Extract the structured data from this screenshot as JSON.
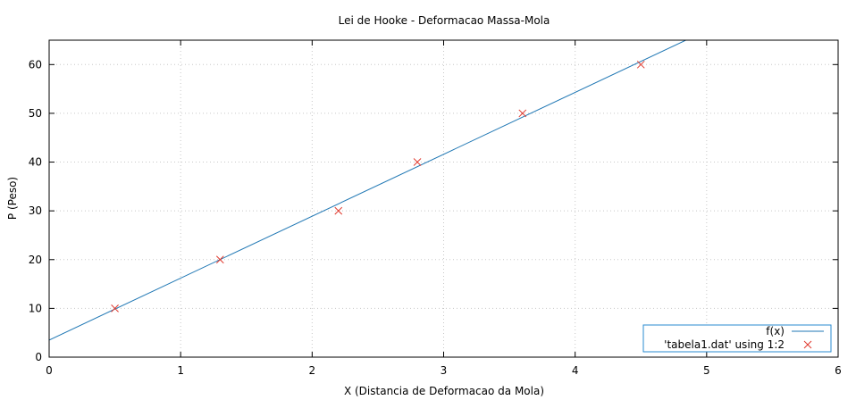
{
  "chart_data": {
    "type": "scatter",
    "title": "Lei de Hooke - Deformacao Massa-Mola",
    "xlabel": "X (Distancia de Deformacao da Mola)",
    "ylabel": "P (Peso)",
    "xlim": [
      0,
      6
    ],
    "ylim": [
      0,
      65
    ],
    "xticks": [
      "0",
      "1",
      "2",
      "3",
      "4",
      "5",
      "6"
    ],
    "yticks": [
      "0",
      "10",
      "20",
      "30",
      "40",
      "50",
      "60"
    ],
    "grid": true,
    "legend_position": "bottom-right",
    "series": [
      {
        "name": "f(x)",
        "kind": "line",
        "color": "#1f77b4",
        "intercept": 3.5,
        "slope": 12.7
      },
      {
        "name": "'tabela1.dat' using 1:2",
        "kind": "points",
        "marker": "x",
        "color": "#e0392e",
        "x": [
          0.5,
          1.3,
          2.2,
          2.8,
          3.6,
          4.5
        ],
        "y": [
          10,
          20,
          30,
          40,
          50,
          60
        ]
      }
    ]
  }
}
